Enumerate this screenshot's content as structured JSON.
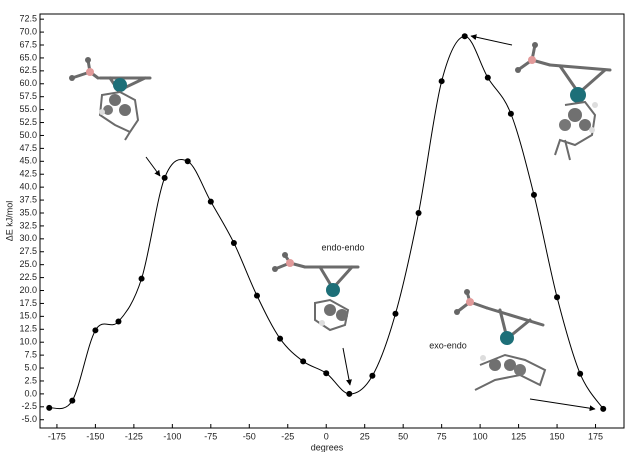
{
  "chart_data": {
    "type": "line",
    "y_label": "ΔE kJ/mol",
    "x_label": "degrees",
    "annotations": [
      "endo-endo",
      "exo-endo"
    ],
    "x": [
      -180,
      -165,
      -150,
      -135,
      -120,
      -105,
      -90,
      -75,
      -60,
      -45,
      -30,
      -15,
      0,
      15,
      30,
      45,
      60,
      75,
      90,
      105,
      120,
      135,
      150,
      165,
      180
    ],
    "series": [
      {
        "color": "#000000",
        "values": [
          -2.7,
          -1.3,
          12.3,
          14.0,
          22.3,
          41.8,
          45.0,
          37.2,
          29.2,
          19.0,
          10.7,
          6.3,
          4.0,
          0.0,
          3.5,
          15.5,
          35.0,
          60.5,
          69.2,
          61.2,
          54.2,
          38.5,
          18.7,
          3.9,
          -2.9
        ]
      }
    ],
    "xlim": [
      -186,
      193.5
    ],
    "ylim": [
      -6.6,
      73.5
    ],
    "xticks": [
      -175,
      -150,
      -125,
      -100,
      -75,
      -50,
      -25,
      0,
      25,
      50,
      75,
      100,
      125,
      150,
      175
    ],
    "yticks": [
      {
        "value": -5,
        "label": "-5.0"
      },
      -2.5,
      {
        "value": 0,
        "label": "0.0"
      },
      2.5,
      {
        "value": 5,
        "label": "5.0"
      },
      7.5,
      {
        "value": 10,
        "label": "10.0"
      },
      12.5,
      {
        "value": 15,
        "label": "15.0"
      },
      17.5,
      {
        "value": 20,
        "label": "20.0"
      },
      22.5,
      {
        "value": 25,
        "label": "25.0"
      },
      27.5,
      {
        "value": 30,
        "label": "30.0"
      },
      32.5,
      {
        "value": 35,
        "label": "35.0"
      },
      37.5,
      {
        "value": 40,
        "label": "40.0"
      },
      42.5,
      {
        "value": 45,
        "label": "45.0"
      },
      47.5,
      {
        "value": 50,
        "label": "50.0"
      },
      52.5,
      {
        "value": 55,
        "label": "55.0"
      },
      57.5,
      {
        "value": 60,
        "label": "60.0"
      },
      62.5,
      {
        "value": 65,
        "label": "65.0"
      },
      67.5,
      {
        "value": 70,
        "label": "70.0"
      },
      72.5
    ]
  }
}
